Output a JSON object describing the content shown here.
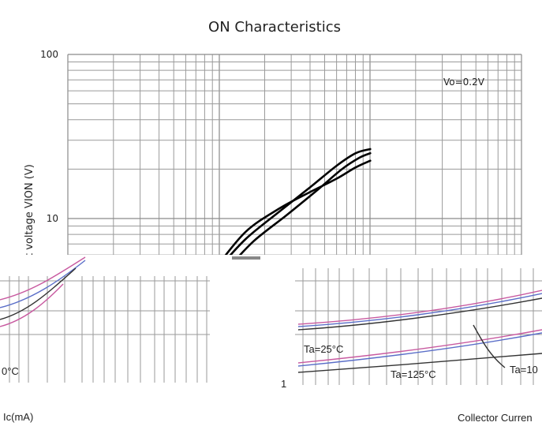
{
  "chart_data": [
    {
      "type": "line",
      "title": "ON Characteristics",
      "ylabel": "t voltage VION (V)",
      "ylog": true,
      "ylim": [
        5,
        100
      ],
      "yticks": [
        {
          "value": 100,
          "label": "100"
        },
        {
          "value": 10,
          "label": "10"
        }
      ],
      "xlog": true,
      "xlim": [
        0.1,
        10
      ],
      "grid": true,
      "annotation": "Vo=0.2V",
      "series": [
        {
          "x": [
            1.0,
            1.5,
            2.5,
            4.0,
            6.0,
            8.0,
            10.0
          ],
          "y": [
            5.0,
            7.5,
            11.0,
            15.5,
            21.0,
            25.0,
            26.5
          ]
        },
        {
          "x": [
            1.15,
            1.7,
            2.8,
            4.5,
            6.5,
            8.5,
            10.0
          ],
          "y": [
            5.0,
            7.3,
            10.5,
            15.0,
            20.0,
            23.5,
            25.0
          ]
        },
        {
          "x": [
            0.95,
            1.5,
            2.5,
            4.0,
            6.0,
            8.0,
            10.0
          ],
          "y": [
            5.0,
            8.3,
            11.5,
            14.5,
            17.5,
            20.5,
            22.5
          ]
        }
      ]
    },
    {
      "type": "line",
      "xlabel_left_fragment": "Ic(mA)",
      "xlabel_right_fragment": "Collector Curren",
      "tick_fragment": "1",
      "legend_labels": [
        "Ta=25°C",
        "Ta=125°C",
        "Ta=10",
        "0°C"
      ]
    }
  ],
  "colors": {
    "grid": "#9a9a9a",
    "curve": "#000000",
    "noise_magenta": "#c85aa0",
    "noise_blue": "#5a6ec8"
  }
}
